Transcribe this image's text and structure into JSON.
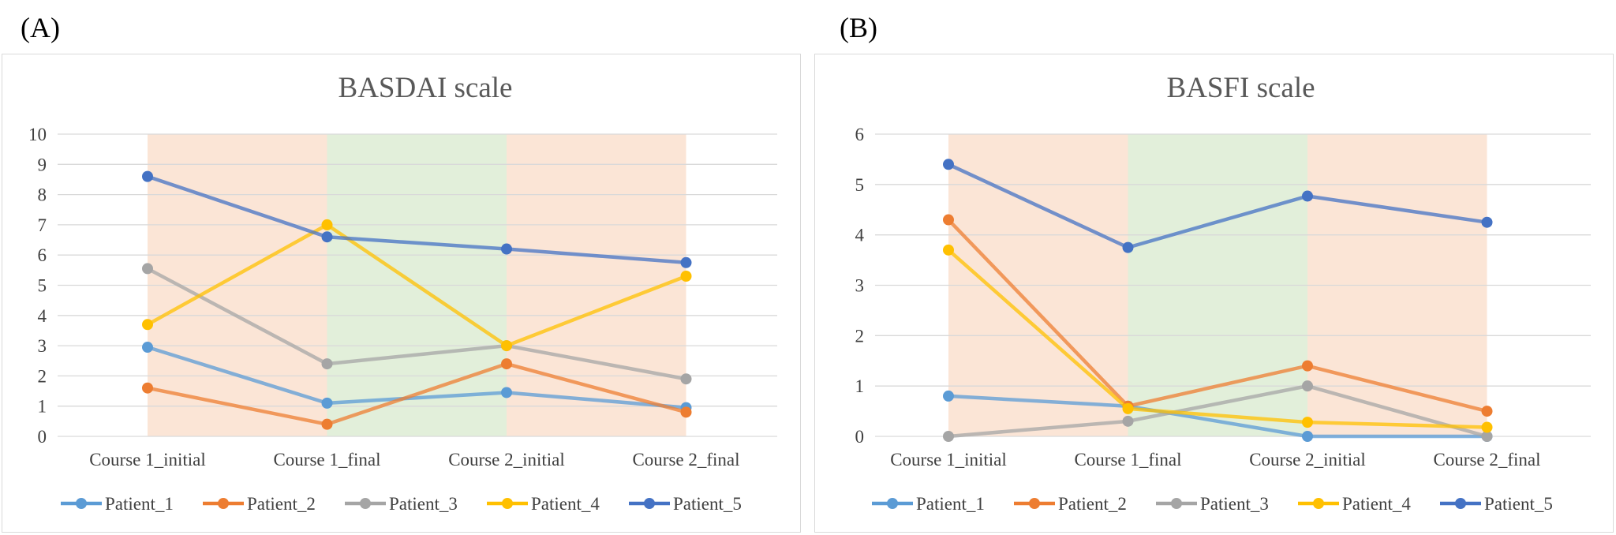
{
  "panels": [
    {
      "letter": "(A)"
    },
    {
      "letter": "(B)"
    }
  ],
  "bands": {
    "red": "#fbe5d6",
    "green": "#e2efda",
    "pattern": [
      "red",
      "green",
      "red"
    ]
  },
  "chart_data": [
    {
      "type": "line",
      "title": "BASDAI scale",
      "xlabel": "",
      "ylabel": "",
      "categories": [
        "Course 1_initial",
        "Course 1_final",
        "Course 2_initial",
        "Course 2_final"
      ],
      "ylim": [
        0,
        10
      ],
      "yticks": [
        "0",
        "1",
        "2",
        "3",
        "4",
        "5",
        "6",
        "7",
        "8",
        "9",
        "10"
      ],
      "grid": true,
      "legend": "bottom",
      "series": [
        {
          "name": "Patient_1",
          "color": "#5b9bd5",
          "values": [
            2.95,
            1.1,
            1.45,
            0.95
          ]
        },
        {
          "name": "Patient_2",
          "color": "#ed7d31",
          "values": [
            1.6,
            0.4,
            2.4,
            0.8
          ]
        },
        {
          "name": "Patient_3",
          "color": "#a5a5a5",
          "values": [
            5.55,
            2.4,
            3.0,
            1.9
          ]
        },
        {
          "name": "Patient_4",
          "color": "#ffc000",
          "values": [
            3.7,
            7.0,
            3.0,
            5.3
          ]
        },
        {
          "name": "Patient_5",
          "color": "#4472c4",
          "values": [
            8.6,
            6.6,
            6.2,
            5.75
          ]
        }
      ]
    },
    {
      "type": "line",
      "title": "BASFI scale",
      "xlabel": "",
      "ylabel": "",
      "categories": [
        "Course 1_initial",
        "Course 1_final",
        "Course 2_initial",
        "Course 2_final"
      ],
      "ylim": [
        0,
        6
      ],
      "yticks": [
        "0",
        "1",
        "2",
        "3",
        "4",
        "5",
        "6"
      ],
      "grid": true,
      "legend": "bottom",
      "series": [
        {
          "name": "Patient_1",
          "color": "#5b9bd5",
          "values": [
            0.8,
            0.6,
            0.0,
            0.0
          ]
        },
        {
          "name": "Patient_2",
          "color": "#ed7d31",
          "values": [
            4.3,
            0.6,
            1.4,
            0.5
          ]
        },
        {
          "name": "Patient_3",
          "color": "#a5a5a5",
          "values": [
            0.0,
            0.3,
            1.0,
            0.0
          ]
        },
        {
          "name": "Patient_4",
          "color": "#ffc000",
          "values": [
            3.7,
            0.55,
            0.28,
            0.18
          ]
        },
        {
          "name": "Patient_5",
          "color": "#4472c4",
          "values": [
            5.4,
            3.75,
            4.77,
            4.25
          ]
        }
      ]
    }
  ]
}
